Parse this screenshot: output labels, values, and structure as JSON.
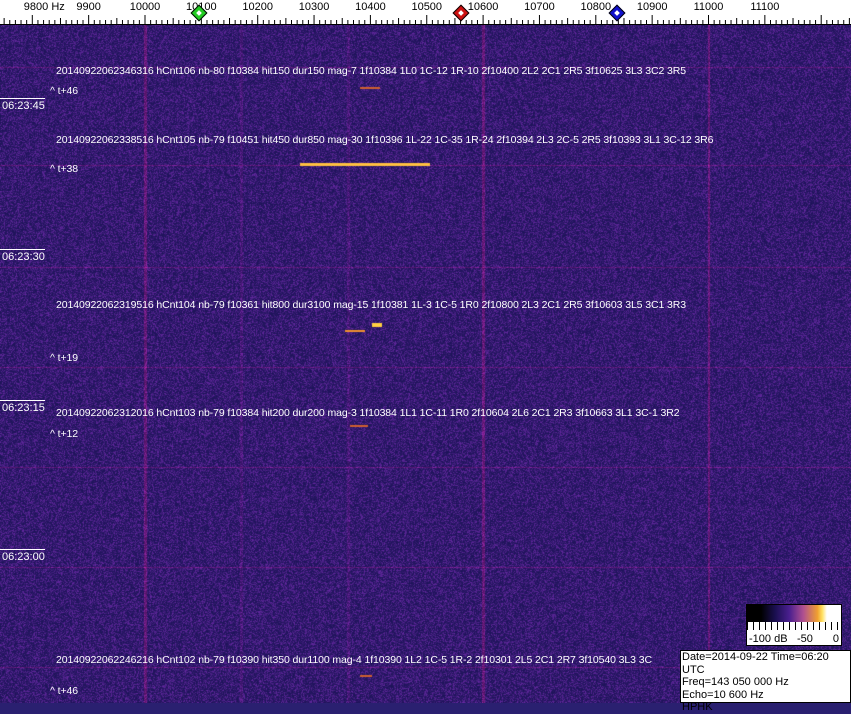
{
  "chart_data": {
    "type": "heatmap",
    "x_unit": "Hz",
    "x_ticks": [
      "9800 Hz",
      "9900",
      "10000",
      "10100",
      "10200",
      "10300",
      "10400",
      "10500",
      "10600",
      "10700",
      "10800",
      "10900",
      "11000",
      "11100"
    ],
    "x_tick_values": [
      9800,
      9900,
      10000,
      10100,
      10200,
      10300,
      10400,
      10500,
      10600,
      10700,
      10800,
      10900,
      11000,
      11100
    ],
    "markers": [
      {
        "freq": 10100,
        "color": "#22cc22"
      },
      {
        "freq": 10570,
        "color": "#cc1111"
      },
      {
        "freq": 10840,
        "color": "#1111cc"
      }
    ],
    "time_labels": [
      "06:23:45",
      "06:23:30",
      "06:23:15",
      "06:23:00"
    ],
    "background_color": "#2a2070",
    "events": [
      {
        "text": "20140922062346316 hCnt106 nb-80 f10384 hit150 dur150 mag-7 1f10384 1L0 1C-12 1R-10 2f10400 2L2 2C1 2R5 3f10625 3L3 3C2 3R5",
        "tlabel": "^ t+46"
      },
      {
        "text": "20140922062338516 hCnt105 nb-79 f10451 hit450 dur850 mag-30 1f10396 1L-22 1C-35 1R-24 2f10394 2L3 2C-5 2R5 3f10393 3L1 3C-12 3R6",
        "tlabel": "^ t+38"
      },
      {
        "text": "20140922062319516 hCnt104 nb-79 f10361 hit800 dur3100 mag-15 1f10381 1L-3 1C-5 1R0 2f10800 2L3 2C1 2R5 3f10603 3L5 3C1 3R3",
        "tlabel": "^ t+19"
      },
      {
        "text": "20140922062312016 hCnt103 nb-79 f10384 hit200 dur200 mag-3 1f10384 1L1 1C-11 1R0 2f10604 2L6 2C1 2R3 3f10663 3L1 3C-1 3R2",
        "tlabel": "^ t+12"
      },
      {
        "text": "20140922062246216 hCnt102 nb-79 f10390 hit350 dur1100 mag-4 1f10390 1L2 1C-5 1R-2 2f10301 2L5 2C1 2R7 3f10540 3L3 3C",
        "tlabel": "^ t+46"
      }
    ],
    "colorbar": {
      "labels": [
        "-100 dB",
        "-50",
        "0"
      ]
    }
  },
  "info": {
    "line1": "Date=2014-09-22 Time=06:20 UTC",
    "line2": "Freq=143 050 000 Hz",
    "line3": "Echo=10 600 Hz",
    "line4": "HPHK"
  }
}
